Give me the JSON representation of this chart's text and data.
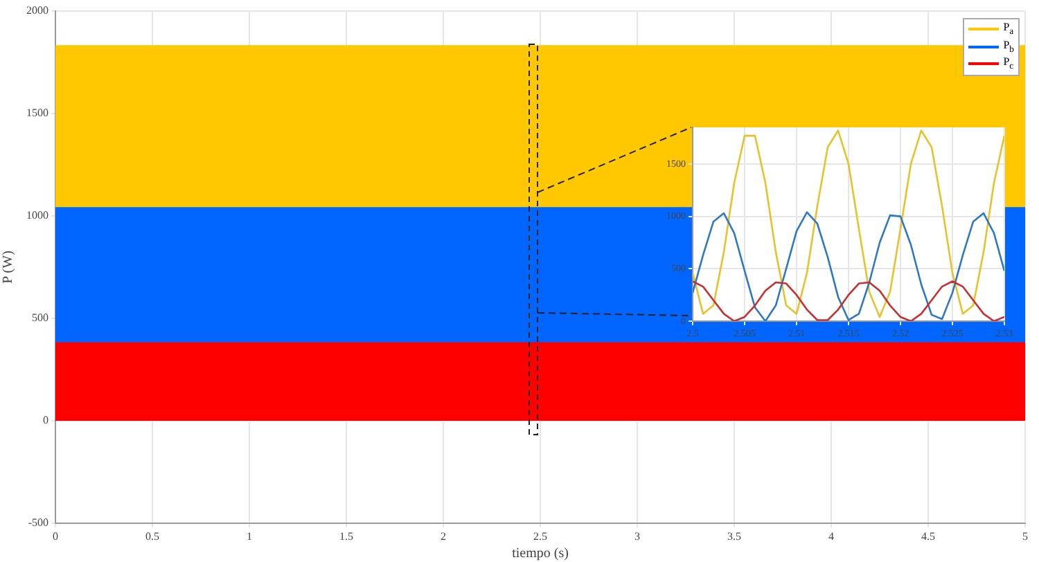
{
  "chart_data": [
    {
      "type": "area",
      "xlabel": "tiempo (s)",
      "ylabel": "P (W)",
      "xlim": [
        0,
        5
      ],
      "xticks": [
        0,
        0.5,
        1,
        1.5,
        2,
        2.5,
        3,
        3.5,
        4,
        4.5,
        5
      ],
      "ylim": [
        -500,
        2000
      ],
      "yticks": [
        -500,
        0,
        500,
        1000,
        1500,
        2000
      ],
      "grid": true,
      "legend": "top right",
      "marker": "none",
      "line_style": "solid",
      "x": [
        0,
        5
      ],
      "series": [
        {
          "name": "P$_{a}$",
          "color": "#ffc800",
          "values": [
            1830,
            1830
          ]
        },
        {
          "name": "P$_{b}$",
          "color": "#0066ff",
          "values": [
            1040,
            1040
          ]
        },
        {
          "name": "P$_{c}$",
          "color": "#ff0000",
          "values": [
            380,
            380
          ]
        }
      ]
    },
    {
      "type": "line",
      "xlim": [
        2.5,
        2.53
      ],
      "xticks": [
        2.5,
        2.505,
        2.51,
        2.515,
        2.52,
        2.525,
        2.53
      ],
      "ylim": [
        0,
        1850
      ],
      "yticks": [
        0,
        500,
        1000,
        1500
      ],
      "grid": true,
      "marker": "none",
      "line_style": "solid",
      "x": [
        2.5,
        2.501,
        2.502,
        2.503,
        2.504,
        2.505,
        2.506,
        2.507,
        2.508,
        2.509,
        2.51,
        2.511,
        2.512,
        2.513,
        2.514,
        2.515,
        2.516,
        2.517,
        2.518,
        2.519,
        2.52,
        2.521,
        2.522,
        2.523,
        2.524,
        2.525,
        2.526,
        2.527,
        2.528,
        2.529,
        2.53
      ],
      "series": [
        {
          "color": "#e8c22a",
          "values": [
            460,
            70,
            150,
            660,
            1320,
            1770,
            1770,
            1320,
            660,
            150,
            70,
            460,
            1100,
            1660,
            1820,
            1500,
            880,
            280,
            40,
            280,
            880,
            1500,
            1820,
            1660,
            1100,
            460,
            70,
            150,
            660,
            1320,
            1770
          ]
        },
        {
          "color": "#2f78c4",
          "values": [
            270,
            630,
            950,
            1030,
            840,
            480,
            130,
            0,
            150,
            500,
            860,
            1040,
            930,
            610,
            230,
            10,
            70,
            370,
            750,
            1010,
            1000,
            730,
            350,
            60,
            20,
            270,
            630,
            950,
            1030,
            840,
            480
          ]
        },
        {
          "color": "#c83030",
          "values": [
            380,
            330,
            200,
            70,
            0,
            40,
            150,
            290,
            370,
            360,
            250,
            110,
            10,
            10,
            110,
            250,
            360,
            370,
            290,
            150,
            40,
            0,
            70,
            200,
            330,
            380,
            330,
            200,
            70,
            0,
            40
          ]
        }
      ]
    }
  ]
}
